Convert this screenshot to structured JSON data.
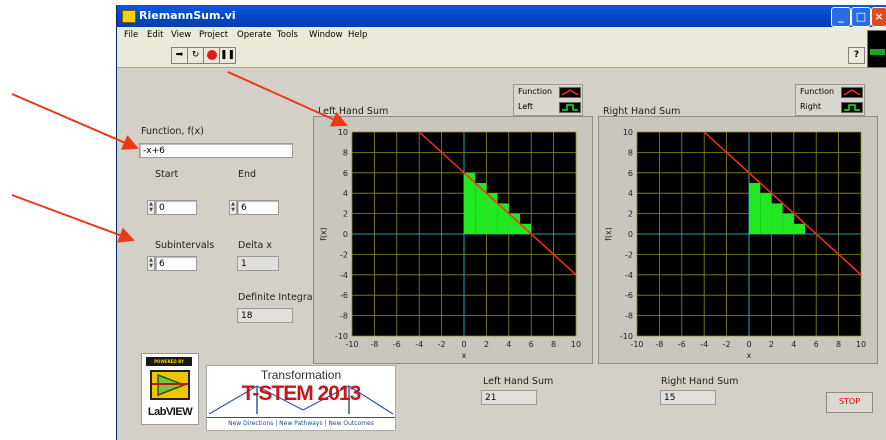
{
  "window": {
    "title": "RiemannSum.vi"
  },
  "menu": [
    "File",
    "Edit",
    "View",
    "Project",
    "Operate",
    "Tools",
    "Window",
    "Help"
  ],
  "toolbar": {
    "run_icon": "run-arrow-icon",
    "run_continuous_icon": "run-continuously-icon",
    "abort_icon": "abort-icon",
    "pause_icon": "pause-icon",
    "help_label": "?"
  },
  "controls": {
    "function_label": "Function, f(x)",
    "function_value": "-x+6",
    "start_label": "Start",
    "start_value": "0",
    "end_label": "End",
    "end_value": "6",
    "subintervals_label": "Subintervals",
    "subintervals_value": "6",
    "deltax_label": "Delta x",
    "deltax_value": "1",
    "integral_label": "Definite Integral",
    "integral_value": "18"
  },
  "graphs": {
    "left": {
      "title": "Left Hand Sum",
      "legend_function": "Function",
      "legend_series": "Left",
      "xlabel": "x",
      "ylabel": "f(x)"
    },
    "right": {
      "title": "Right Hand Sum",
      "legend_function": "Function",
      "legend_series": "Right",
      "xlabel": "x",
      "ylabel": "f(x)"
    }
  },
  "results": {
    "left_label": "Left Hand Sum",
    "left_value": "21",
    "right_label": "Right Hand Sum",
    "right_value": "15",
    "stop_label": "STOP"
  },
  "logos": {
    "labview_top": "POWERED BY",
    "labview_bottom": "LabVIEW",
    "tstem_top": "Transformation",
    "tstem_main": "T-STEM 2013",
    "tstem_tagline": "New Directions | New Pathways | New Outcomes"
  },
  "colors": {
    "function_line": "#ff2a1a",
    "bars": "#22e822",
    "plot_bg": "#000000",
    "grid": "#8a8a1e",
    "axis_zero": "#1fd6d6",
    "arrow": "#e8391b"
  },
  "chart_data": [
    {
      "type": "bar",
      "title": "Left Hand Sum",
      "xlabel": "x",
      "ylabel": "f(x)",
      "xlim": [
        -10,
        10
      ],
      "ylim": [
        -10,
        10
      ],
      "xticks": [
        -10,
        -8,
        -6,
        -4,
        -2,
        0,
        2,
        4,
        6,
        8,
        10
      ],
      "yticks": [
        10,
        8,
        6,
        4,
        2,
        0,
        -2,
        -4,
        -6,
        -8,
        -10
      ],
      "function_line": {
        "x": [
          -4,
          10
        ],
        "y": [
          10,
          -4
        ]
      },
      "bars": {
        "x_left": [
          0,
          1,
          2,
          3,
          4,
          5
        ],
        "width": 1,
        "values": [
          6,
          5,
          4,
          3,
          2,
          1
        ]
      },
      "legend": [
        "Function",
        "Left"
      ]
    },
    {
      "type": "bar",
      "title": "Right Hand Sum",
      "xlabel": "x",
      "ylabel": "f(x)",
      "xlim": [
        -10,
        10
      ],
      "ylim": [
        -10,
        10
      ],
      "xticks": [
        -10,
        -8,
        -6,
        -4,
        -2,
        0,
        2,
        4,
        6,
        8,
        10
      ],
      "yticks": [
        10,
        8,
        6,
        4,
        2,
        0,
        -2,
        -4,
        -6,
        -8,
        -10
      ],
      "function_line": {
        "x": [
          -4,
          10
        ],
        "y": [
          10,
          -4
        ]
      },
      "bars": {
        "x_left": [
          0,
          1,
          2,
          3,
          4,
          5
        ],
        "width": 1,
        "values": [
          5,
          4,
          3,
          2,
          1,
          0
        ]
      },
      "legend": [
        "Function",
        "Right"
      ]
    }
  ]
}
